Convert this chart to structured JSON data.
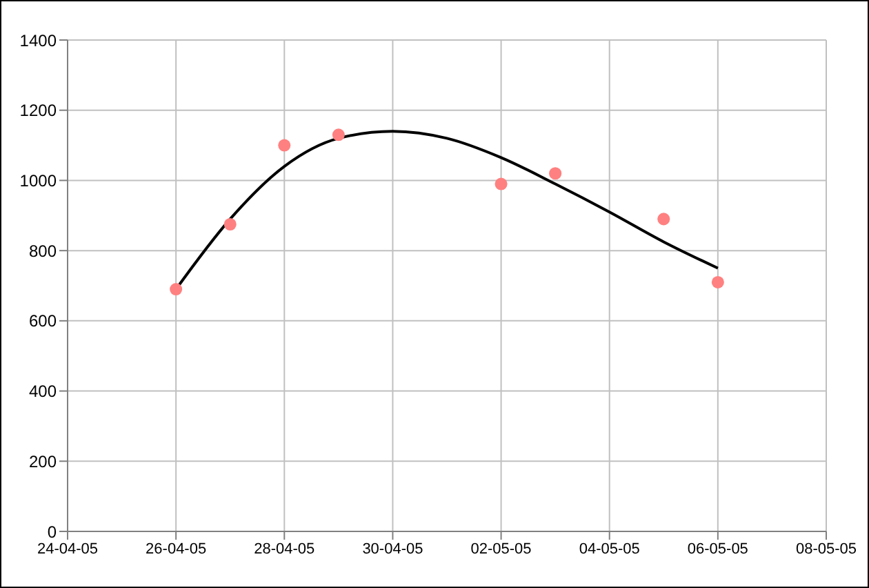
{
  "chart_data": {
    "type": "scatter",
    "series": [
      {
        "color": "#ff8080",
        "marker": "circle",
        "x": [
          "--04-26",
          "--04-27",
          "--04-28",
          "--04-29",
          "--05-02",
          "--05-03",
          "--05-05",
          "--05-06"
        ],
        "values": [
          690,
          875,
          1100,
          1130,
          990,
          1020,
          890,
          710
        ]
      },
      {
        "type": "line",
        "color": "#000000",
        "marker": "none",
        "line_style": "solid",
        "x": [
          "--04-26",
          "--04-27",
          "--04-28",
          "--04-29",
          "--04-30",
          "--05-01",
          "--05-02",
          "--05-03",
          "--05-04",
          "--05-05",
          "--05-06"
        ],
        "values": [
          690,
          890,
          1040,
          1120,
          1140,
          1120,
          1065,
          990,
          910,
          825,
          750
        ]
      }
    ],
    "xlim": [
      "--04-24",
      "--05-08"
    ],
    "xticks": [
      {
        "value": "--04-24",
        "label": "24-04-05"
      },
      {
        "value": "--04-26",
        "label": "26-04-05"
      },
      {
        "value": "--04-28",
        "label": "28-04-05"
      },
      {
        "value": "--04-30",
        "label": "30-04-05"
      },
      {
        "value": "--05-02",
        "label": "02-05-05"
      },
      {
        "value": "--05-04",
        "label": "04-05-05"
      },
      {
        "value": "--05-06",
        "label": "06-05-05"
      },
      {
        "value": "--05-08",
        "label": "08-05-05"
      }
    ],
    "ylim": [
      0,
      1400
    ],
    "yticks": [
      0,
      200,
      400,
      600,
      800,
      1000,
      1200,
      1400
    ],
    "grid": true
  }
}
